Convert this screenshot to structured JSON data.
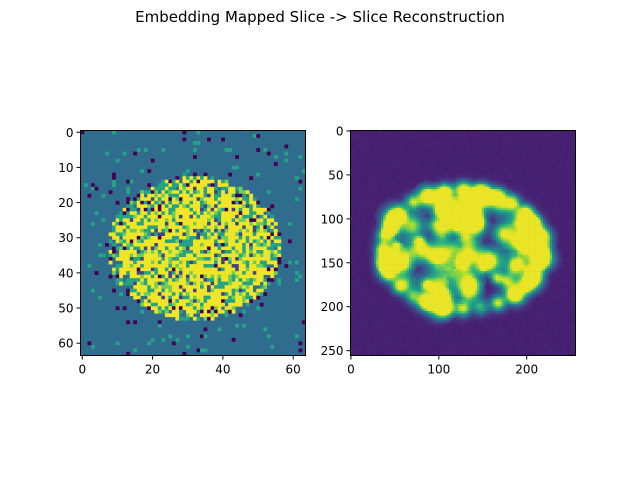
{
  "figure": {
    "title": "Embedding Mapped Slice -> Slice Reconstruction"
  },
  "chart_data": [
    {
      "type": "heatmap",
      "colormap": "viridis",
      "shape": [
        64,
        64
      ],
      "xlim": [
        -0.5,
        63.5
      ],
      "ylim": [
        63.5,
        -0.5
      ],
      "x_ticks": [
        0,
        20,
        40,
        60
      ],
      "y_ticks": [
        0,
        10,
        20,
        30,
        40,
        50,
        60
      ],
      "x_tick_labels": [
        "0",
        "20",
        "40",
        "60"
      ],
      "y_tick_labels": [
        "0",
        "10",
        "20",
        "30",
        "40",
        "50",
        "60"
      ],
      "background_level": 0.35,
      "content": "Discrete-valued embedding-mapped slice: bright yellow/teal pixelated ellipse (centered near x=32, y=33) on a steel-blue background with scattered dark-purple and teal speckles."
    },
    {
      "type": "heatmap",
      "colormap": "viridis",
      "shape": [
        256,
        256
      ],
      "xlim": [
        -0.5,
        255.5
      ],
      "ylim": [
        255.5,
        -0.5
      ],
      "x_ticks": [
        0,
        100,
        200
      ],
      "y_ticks": [
        0,
        50,
        100,
        150,
        200,
        250
      ],
      "x_tick_labels": [
        "0",
        "100",
        "200"
      ],
      "y_tick_labels": [
        "0",
        "50",
        "100",
        "150",
        "200",
        "250"
      ],
      "background_level": 0.08,
      "content": "Smooth reconstructed slice: green/yellow-green blurred ridge structures forming an ellipse (centered near x=128, y=135) on a dark purple background."
    }
  ]
}
